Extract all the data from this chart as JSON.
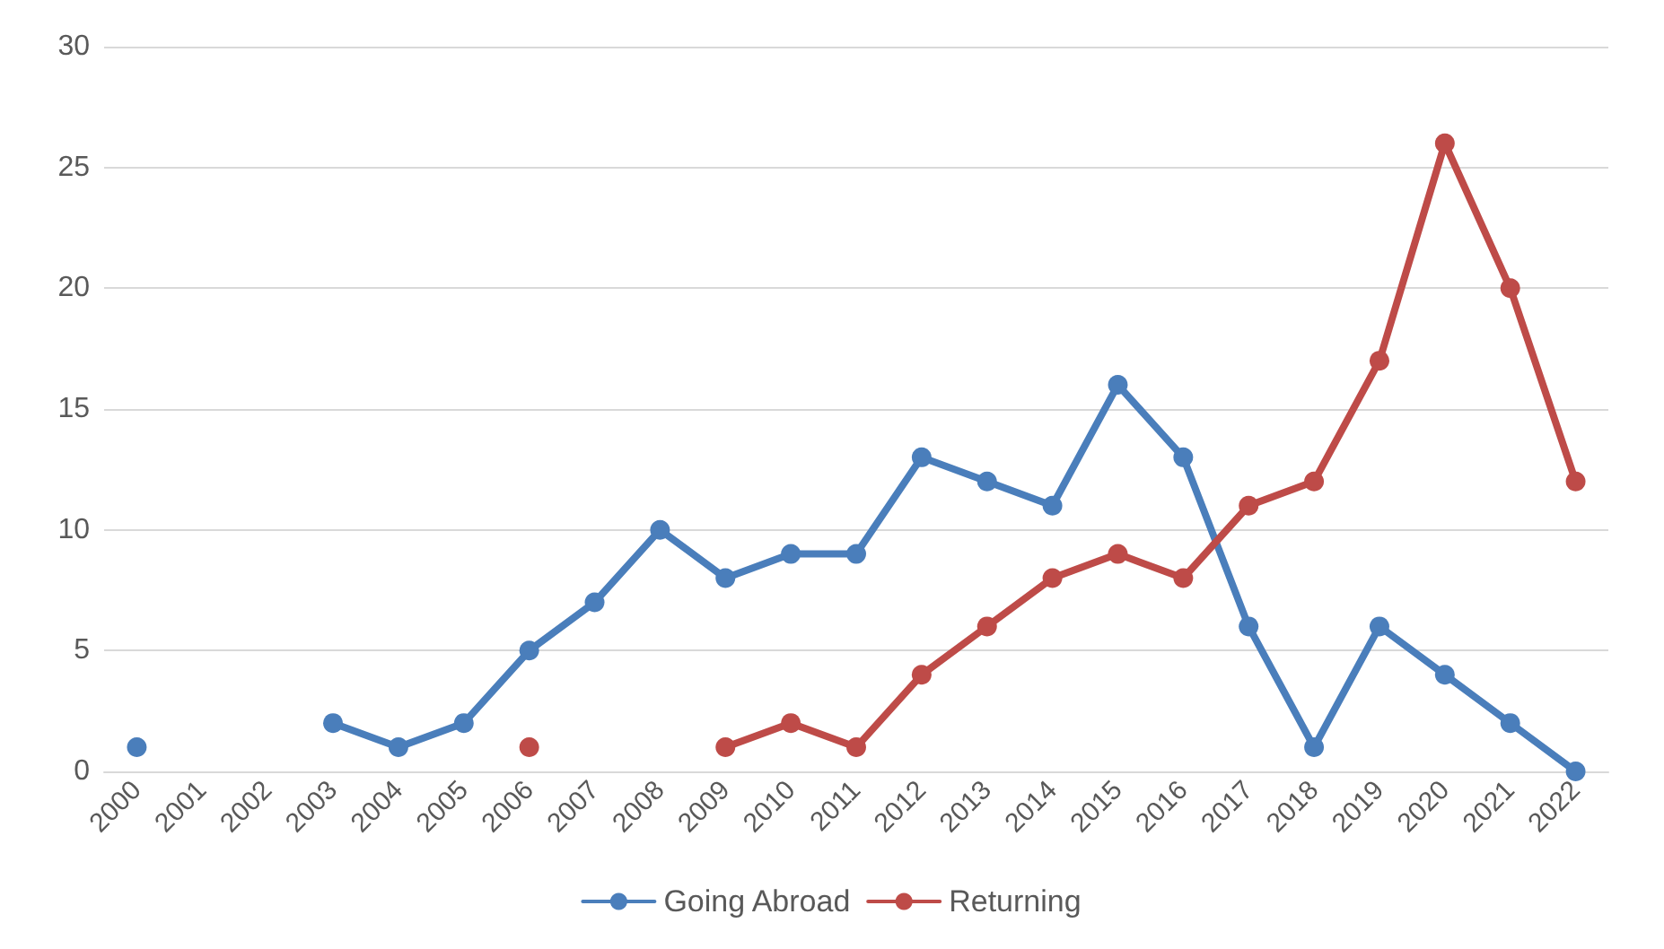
{
  "chart_data": {
    "type": "line",
    "categories": [
      "2000",
      "2001",
      "2002",
      "2003",
      "2004",
      "2005",
      "2006",
      "2007",
      "2008",
      "2009",
      "2010",
      "2011",
      "2012",
      "2013",
      "2014",
      "2015",
      "2016",
      "2017",
      "2018",
      "2019",
      "2020",
      "2021",
      "2022"
    ],
    "series": [
      {
        "name": "Going Abroad",
        "color": "#4a7ebb",
        "values": [
          1,
          null,
          null,
          2,
          1,
          2,
          5,
          7,
          10,
          8,
          9,
          9,
          13,
          12,
          11,
          16,
          13,
          6,
          1,
          6,
          4,
          2,
          0
        ]
      },
      {
        "name": "Returning",
        "color": "#be4b48",
        "values": [
          null,
          null,
          null,
          null,
          null,
          null,
          1,
          null,
          null,
          1,
          2,
          1,
          4,
          6,
          8,
          9,
          8,
          11,
          12,
          17,
          26,
          20,
          12
        ]
      }
    ],
    "ylim": [
      0,
      30
    ],
    "yticks": [
      0,
      5,
      10,
      15,
      20,
      25,
      30
    ],
    "grid": "y",
    "legend": "bottom",
    "marker": "circle",
    "line_style": "solid"
  }
}
